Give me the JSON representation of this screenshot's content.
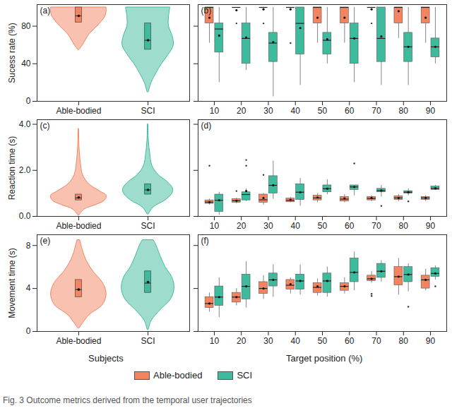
{
  "caption": "Fig. 3   Outcome metrics derived from the temporal user trajectories",
  "chart_data": [
    {
      "type": "violin",
      "title": "(a)",
      "y_label": "Sucess rate (%)",
      "ylim": [
        0,
        103
      ],
      "yticks": [
        0,
        40,
        80
      ],
      "series": [
        {
          "name": "Able-bodied",
          "color": "#f4845f",
          "density": {
            "y": [
              55,
              60,
              65,
              70,
              75,
              80,
              85,
              90,
              95,
              100
            ],
            "width": [
              0.01,
              0.06,
              0.1,
              0.14,
              0.2,
              0.27,
              0.33,
              0.38,
              0.4,
              0.4
            ]
          },
          "q1": 84,
          "median": 91,
          "q3": 100,
          "mean": 91
        },
        {
          "name": "SCI",
          "color": "#3dbb9c",
          "density": {
            "y": [
              10,
              20,
              30,
              40,
              50,
              60,
              70,
              80,
              90,
              100
            ],
            "width": [
              0.01,
              0.05,
              0.12,
              0.2,
              0.3,
              0.37,
              0.35,
              0.3,
              0.3,
              0.32
            ]
          },
          "q1": 55,
          "median": 65,
          "q3": 83,
          "mean": 65
        }
      ]
    },
    {
      "type": "box",
      "title": "(b)",
      "tick_labels": "x",
      "xlim": [
        4,
        96
      ],
      "xticks": [
        10,
        20,
        30,
        40,
        50,
        60,
        70,
        80,
        90
      ],
      "ylim": [
        0,
        103
      ],
      "yticks": [
        0,
        40,
        80
      ],
      "x": [
        10,
        20,
        30,
        40,
        50,
        60,
        70,
        80,
        90
      ],
      "series": [
        {
          "name": "Able-bodied",
          "color": "#f4845f",
          "min": [
            62,
            100,
            100,
            100,
            62,
            62,
            100,
            67,
            62
          ],
          "q1": [
            83,
            100,
            100,
            100,
            83,
            83,
            100,
            83,
            83
          ],
          "median": [
            100,
            100,
            100,
            100,
            100,
            100,
            100,
            100,
            100
          ],
          "q3": [
            100,
            100,
            100,
            100,
            100,
            100,
            100,
            100,
            100
          ],
          "max": [
            100,
            100,
            100,
            100,
            100,
            100,
            100,
            100,
            100
          ],
          "mean": [
            89,
            97,
            98,
            98,
            89,
            89,
            98,
            96,
            89
          ],
          "outliers": [
            [],
            [
              83
            ],
            [
              83
            ],
            [
              62
            ],
            [],
            [],
            [
              83
            ],
            [],
            []
          ]
        },
        {
          "name": "SCI",
          "color": "#3dbb9c",
          "min": [
            20,
            33,
            5,
            17,
            40,
            20,
            17,
            17,
            40
          ],
          "q1": [
            52,
            40,
            42,
            50,
            50,
            40,
            42,
            42,
            47
          ],
          "median": [
            77,
            67,
            62,
            83,
            65,
            67,
            67,
            58,
            58
          ],
          "q3": [
            83,
            83,
            73,
            100,
            73,
            83,
            100,
            73,
            67
          ],
          "max": [
            100,
            100,
            100,
            100,
            100,
            100,
            100,
            100,
            100
          ],
          "mean": [
            70,
            68,
            63,
            78,
            66,
            67,
            69,
            58,
            58
          ],
          "outliers": [
            [],
            [],
            [],
            [],
            [],
            [],
            [],
            [],
            []
          ]
        }
      ]
    },
    {
      "type": "violin",
      "title": "(c)",
      "y_label": "Reaction time (s)",
      "ylim": [
        0,
        4.2
      ],
      "yticks": [
        0,
        2,
        4
      ],
      "series": [
        {
          "name": "Able-bodied",
          "color": "#f4845f",
          "density": {
            "y": [
              0.05,
              0.3,
              0.5,
              0.7,
              0.9,
              1.1,
              1.4,
              1.8,
              2.3,
              3,
              3.8
            ],
            "width": [
              0.01,
              0.08,
              0.25,
              0.38,
              0.4,
              0.3,
              0.15,
              0.06,
              0.03,
              0.01,
              0.005
            ]
          },
          "q1": 0.7,
          "median": 0.8,
          "q3": 0.95,
          "mean": 0.82
        },
        {
          "name": "SCI",
          "color": "#3dbb9c",
          "density": {
            "y": [
              0.1,
              0.4,
              0.7,
              1.0,
              1.2,
              1.5,
              1.8,
              2.2,
              2.7,
              3.3,
              4.0
            ],
            "width": [
              0.01,
              0.08,
              0.25,
              0.35,
              0.36,
              0.28,
              0.15,
              0.06,
              0.03,
              0.01,
              0.005
            ]
          },
          "q1": 0.95,
          "median": 1.15,
          "q3": 1.4,
          "mean": 1.15
        }
      ]
    },
    {
      "type": "box",
      "title": "(d)",
      "tick_labels": "x",
      "xlim": [
        4,
        96
      ],
      "xticks": [
        10,
        20,
        30,
        40,
        50,
        60,
        70,
        80,
        90
      ],
      "ylim": [
        0,
        4.2
      ],
      "yticks": [
        0,
        2,
        4
      ],
      "x": [
        10,
        20,
        30,
        40,
        50,
        60,
        70,
        80,
        90
      ],
      "series": [
        {
          "name": "Able-bodied",
          "color": "#f4845f",
          "min": [
            0.5,
            0.55,
            0.5,
            0.6,
            0.6,
            0.6,
            0.65,
            0.65,
            0.65
          ],
          "q1": [
            0.55,
            0.6,
            0.6,
            0.62,
            0.7,
            0.65,
            0.7,
            0.72,
            0.72
          ],
          "median": [
            0.62,
            0.68,
            0.72,
            0.7,
            0.8,
            0.75,
            0.78,
            0.8,
            0.8
          ],
          "q3": [
            0.7,
            0.75,
            0.95,
            0.78,
            0.9,
            0.85,
            0.85,
            0.88,
            0.85
          ],
          "max": [
            0.75,
            0.8,
            1.0,
            0.82,
            1.0,
            0.95,
            0.9,
            0.95,
            0.9
          ],
          "mean": [
            0.62,
            0.68,
            0.8,
            0.72,
            0.82,
            0.78,
            0.8,
            0.8,
            0.8
          ],
          "outliers": [
            [
              2.2
            ],
            [
              1.1
            ],
            [
              1.8
            ],
            [],
            [],
            [],
            [],
            [],
            []
          ]
        },
        {
          "name": "SCI",
          "color": "#3dbb9c",
          "min": [
            0.05,
            0.65,
            0.75,
            0.45,
            0.95,
            0.9,
            0.85,
            0.9,
            1.15
          ],
          "q1": [
            0.2,
            0.7,
            1.0,
            0.72,
            1.05,
            1.15,
            1.05,
            1.0,
            1.15
          ],
          "median": [
            0.7,
            0.95,
            1.35,
            1.05,
            1.2,
            1.28,
            1.12,
            1.05,
            1.22
          ],
          "q3": [
            0.95,
            1.05,
            1.75,
            1.4,
            1.35,
            1.35,
            1.2,
            1.1,
            1.3
          ],
          "max": [
            1.05,
            1.2,
            2.4,
            1.65,
            1.6,
            1.35,
            1.35,
            1.2,
            1.35
          ],
          "mean": [
            0.7,
            1.1,
            1.35,
            1.05,
            1.2,
            1.28,
            1.12,
            1.05,
            1.22
          ],
          "outliers": [
            [],
            [
              2.2,
              2.45
            ],
            [],
            [],
            [],
            [
              2.3
            ],
            [
              0.45
            ],
            [
              0.65
            ],
            []
          ]
        }
      ]
    },
    {
      "type": "violin",
      "title": "(e)",
      "y_label": "Movement time (s)",
      "x_label": "Subjects",
      "ylim": [
        0,
        9
      ],
      "yticks": [
        0,
        4,
        8
      ],
      "series": [
        {
          "name": "Able-bodied",
          "color": "#f4845f",
          "density": {
            "y": [
              0.3,
              1.5,
              2.5,
              3.5,
              4.5,
              5.5,
              6.5,
              7.5,
              8.5
            ],
            "width": [
              0.01,
              0.15,
              0.35,
              0.4,
              0.35,
              0.22,
              0.12,
              0.06,
              0.02
            ]
          },
          "q1": 3.2,
          "median": 3.9,
          "q3": 4.8,
          "mean": 3.9
        },
        {
          "name": "SCI",
          "color": "#3dbb9c",
          "density": {
            "y": [
              0.2,
              1,
              2,
              3,
              4,
              5,
              6,
              7,
              8,
              8.5
            ],
            "width": [
              0.01,
              0.05,
              0.18,
              0.33,
              0.38,
              0.35,
              0.25,
              0.18,
              0.12,
              0.08
            ]
          },
          "q1": 3.6,
          "median": 4.5,
          "q3": 5.6,
          "mean": 4.6
        }
      ]
    },
    {
      "type": "box",
      "title": "(f)",
      "x_label": "Target position (%)",
      "legend": "bottom",
      "tick_labels": "x",
      "xlim": [
        4,
        96
      ],
      "xticks": [
        10,
        20,
        30,
        40,
        50,
        60,
        70,
        80,
        90
      ],
      "ylim": [
        0,
        9
      ],
      "yticks": [
        0,
        4,
        8
      ],
      "x": [
        10,
        20,
        30,
        40,
        50,
        60,
        70,
        80,
        90
      ],
      "series": [
        {
          "name": "Able-bodied",
          "color": "#f4845f",
          "min": [
            1.8,
            2.4,
            3.0,
            3.5,
            3.3,
            3.5,
            4.5,
            3.4,
            3.8
          ],
          "q1": [
            2.2,
            2.7,
            3.5,
            3.9,
            3.6,
            3.8,
            4.7,
            4.3,
            4.0
          ],
          "median": [
            2.6,
            3.2,
            4.0,
            4.3,
            4.1,
            4.2,
            4.9,
            5.1,
            4.8
          ],
          "q3": [
            3.2,
            3.6,
            4.6,
            4.8,
            4.5,
            4.5,
            5.2,
            6.0,
            5.2
          ],
          "max": [
            3.6,
            4.0,
            5.2,
            5.0,
            4.9,
            5.0,
            5.6,
            6.8,
            5.8
          ],
          "mean": [
            2.6,
            3.2,
            4.0,
            4.4,
            4.2,
            4.2,
            4.9,
            5.1,
            4.8
          ],
          "outliers": [
            [],
            [],
            [],
            [],
            [],
            [],
            [
              3.3,
              3.5
            ],
            [],
            []
          ]
        },
        {
          "name": "SCI",
          "color": "#3dbb9c",
          "min": [
            1.3,
            2.2,
            3.2,
            3.4,
            3.2,
            3.8,
            4.6,
            3.7,
            4.8
          ],
          "q1": [
            2.4,
            3.0,
            4.2,
            3.9,
            3.6,
            4.6,
            5.0,
            4.6,
            5.1
          ],
          "median": [
            3.2,
            4.2,
            4.8,
            4.7,
            4.7,
            5.5,
            5.6,
            5.3,
            5.4
          ],
          "q3": [
            4.2,
            5.3,
            5.4,
            5.3,
            5.4,
            6.8,
            6.3,
            6.0,
            5.9
          ],
          "max": [
            5.0,
            6.5,
            6.2,
            6.2,
            6.0,
            7.4,
            6.6,
            6.3,
            6.1
          ],
          "mean": [
            3.2,
            4.2,
            4.8,
            4.7,
            4.7,
            5.5,
            5.6,
            5.3,
            5.4
          ],
          "outliers": [
            [],
            [],
            [],
            [],
            [],
            [],
            [],
            [
              2.3
            ],
            [
              4.2
            ]
          ]
        }
      ]
    }
  ]
}
